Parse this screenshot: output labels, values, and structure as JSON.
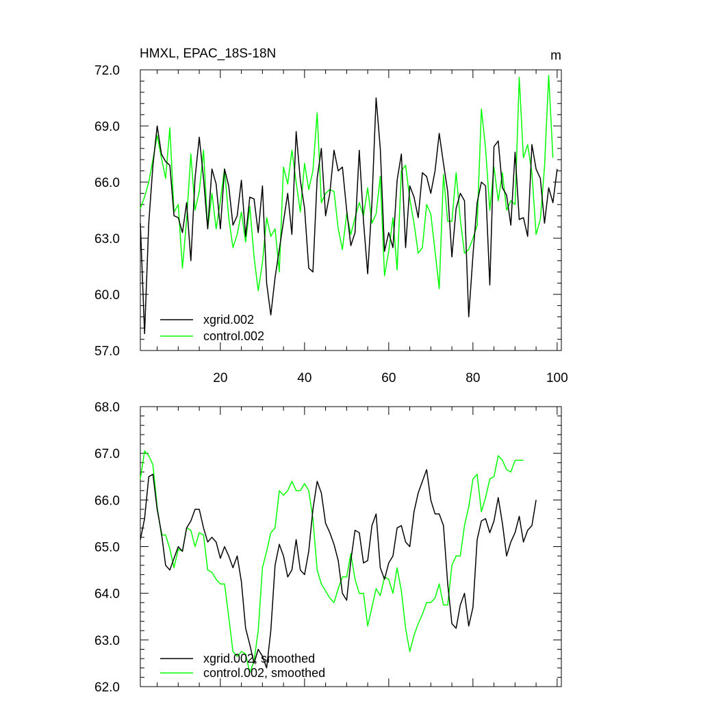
{
  "chart_data": [
    {
      "type": "line",
      "title": "HMXL, EPAC_18S-18N",
      "units": "m",
      "xlim": [
        1,
        101
      ],
      "ylim": [
        57.0,
        72.0
      ],
      "x_ticks": [
        20,
        40,
        60,
        80,
        100
      ],
      "x_tick_labels": [
        "20",
        "40",
        "60",
        "80",
        "100"
      ],
      "y_ticks": [
        57.0,
        60.0,
        63.0,
        66.0,
        69.0,
        72.0
      ],
      "y_tick_labels": [
        "57.0",
        "60.0",
        "63.0",
        "66.0",
        "69.0",
        "72.0"
      ],
      "grid": false,
      "legend_position": "bottom-left",
      "series": [
        {
          "name": "xgrid.002",
          "color": "#000000",
          "values": [
            63.8,
            57.9,
            63.8,
            66.9,
            69.0,
            67.5,
            67.1,
            66.9,
            64.2,
            64.1,
            63.3,
            64.9,
            61.8,
            66.2,
            68.4,
            66.2,
            63.5,
            66.7,
            65.9,
            63.5,
            66.7,
            65.8,
            63.7,
            64.2,
            66.1,
            63.1,
            65.2,
            65.1,
            63.3,
            65.8,
            60.6,
            58.9,
            60.9,
            62.4,
            63.9,
            65.4,
            63.2,
            68.7,
            66.1,
            64.6,
            61.4,
            61.2,
            66.2,
            67.8,
            64.2,
            65.4,
            67.7,
            66.6,
            66.8,
            64.5,
            62.6,
            63.3,
            67.7,
            63.9,
            61.1,
            64.9,
            70.5,
            67.8,
            62.3,
            63.3,
            62.5,
            66.1,
            67.5,
            62.5,
            65.8,
            65.2,
            64.1,
            66.5,
            66.3,
            65.4,
            66.6,
            68.6,
            67.0,
            65.5,
            62.0,
            64.6,
            65.4,
            65.0,
            58.8,
            62.1,
            64.9,
            66.0,
            65.8,
            60.5,
            67.9,
            68.2,
            65.7,
            65.3,
            63.7,
            67.6,
            64.0,
            64.1,
            63.1,
            68.0,
            66.7,
            66.2,
            63.8,
            65.7,
            64.9,
            66.7
          ]
        },
        {
          "name": "control.002",
          "color": "#00ff00",
          "values": [
            64.6,
            65.2,
            66.0,
            67.2,
            68.5,
            67.3,
            66.2,
            68.9,
            64.4,
            64.8,
            61.4,
            64.0,
            67.5,
            64.5,
            65.5,
            67.7,
            63.5,
            65.4,
            63.5,
            65.0,
            66.7,
            64.1,
            62.5,
            63.2,
            64.4,
            62.8,
            64.7,
            62.0,
            60.2,
            61.7,
            64.1,
            63.1,
            63.5,
            61.2,
            66.8,
            65.9,
            67.7,
            66.0,
            64.4,
            67.0,
            65.6,
            66.6,
            69.7,
            64.9,
            65.4,
            65.6,
            65.5,
            63.5,
            62.4,
            64.3,
            63.2,
            64.1,
            64.9,
            64.2,
            65.7,
            63.8,
            64.3,
            66.3,
            61.0,
            62.3,
            64.1,
            61.3,
            66.6,
            66.9,
            65.1,
            63.8,
            62.2,
            62.5,
            64.8,
            64.3,
            62.3,
            60.3,
            66.4,
            63.9,
            63.9,
            66.5,
            64.0,
            62.2,
            62.4,
            63.0,
            63.7,
            69.9,
            67.8,
            64.5,
            66.8,
            65.0,
            66.5,
            64.5,
            65.0,
            64.8,
            71.6,
            67.3,
            68.0,
            66.5,
            63.2,
            64.0,
            66.8,
            71.7,
            67.3
          ]
        }
      ]
    },
    {
      "type": "line",
      "title": "",
      "xlim": [
        1,
        101
      ],
      "ylim": [
        62.0,
        68.0
      ],
      "y_ticks": [
        62.0,
        63.0,
        64.0,
        65.0,
        66.0,
        67.0,
        68.0
      ],
      "y_tick_labels": [
        "62.0",
        "63.0",
        "64.0",
        "65.0",
        "66.0",
        "67.0",
        "68.0"
      ],
      "grid": false,
      "legend_position": "bottom-left",
      "series": [
        {
          "name": "xgrid.002, smoothed",
          "color": "#000000",
          "values": [
            65.15,
            65.6,
            66.5,
            66.55,
            65.8,
            65.3,
            64.6,
            64.5,
            64.75,
            65.0,
            64.9,
            65.4,
            65.55,
            65.8,
            65.8,
            65.4,
            65.1,
            65.2,
            65.1,
            64.75,
            65.0,
            64.8,
            64.55,
            64.8,
            64.25,
            63.25,
            62.9,
            62.5,
            62.8,
            62.65,
            62.4,
            63.2,
            64.6,
            65.05,
            64.8,
            64.35,
            64.5,
            65.15,
            64.5,
            64.4,
            64.9,
            65.8,
            66.4,
            66.15,
            65.5,
            65.3,
            65.05,
            64.7,
            64.0,
            63.85,
            64.7,
            65.35,
            65.3,
            64.65,
            64.7,
            65.45,
            65.7,
            64.55,
            64.3,
            64.65,
            64.8,
            65.4,
            65.45,
            65.1,
            65.0,
            65.75,
            66.15,
            66.4,
            66.65,
            66.0,
            65.7,
            65.7,
            65.45,
            64.2,
            63.35,
            63.25,
            63.75,
            64.0,
            63.3,
            63.7,
            65.15,
            65.55,
            65.6,
            65.3,
            65.55,
            66.05,
            65.5,
            64.8,
            65.1,
            65.3,
            65.65,
            65.1,
            65.35,
            65.45,
            66.0
          ]
        },
        {
          "name": "control.002, smoothed",
          "color": "#00ff00",
          "values": [
            66.45,
            67.05,
            66.95,
            66.75,
            65.85,
            65.25,
            65.25,
            64.95,
            64.55,
            64.95,
            64.9,
            65.4,
            65.35,
            65.0,
            65.3,
            65.25,
            64.5,
            64.45,
            64.3,
            64.2,
            64.2,
            63.5,
            62.75,
            62.65,
            62.75,
            62.7,
            62.3,
            62.55,
            63.2,
            64.55,
            64.9,
            65.3,
            65.4,
            66.2,
            66.1,
            66.2,
            66.4,
            66.2,
            66.2,
            66.35,
            66.2,
            65.6,
            64.5,
            64.2,
            64.05,
            63.9,
            63.8,
            64.1,
            64.35,
            64.35,
            64.85,
            64.3,
            64.0,
            64.0,
            63.3,
            63.7,
            64.1,
            63.95,
            64.35,
            64.3,
            64.0,
            64.55,
            64.05,
            63.25,
            62.75,
            63.1,
            63.35,
            63.55,
            63.8,
            63.8,
            63.9,
            64.2,
            63.75,
            63.75,
            64.6,
            64.8,
            64.8,
            65.45,
            65.85,
            66.45,
            66.55,
            65.75,
            66.05,
            66.45,
            66.5,
            66.95,
            66.85,
            66.65,
            66.6,
            66.85,
            66.85,
            66.85
          ]
        }
      ]
    }
  ]
}
